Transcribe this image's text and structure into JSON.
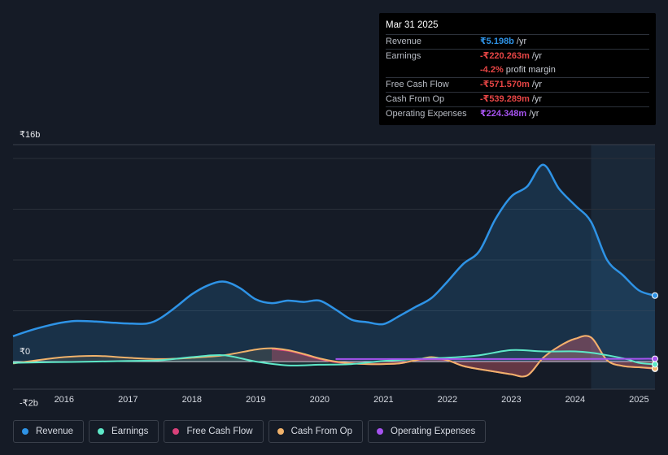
{
  "tooltip": {
    "date": "Mar 31 2025",
    "rows": [
      {
        "label": "Revenue",
        "value": "₹5.198b",
        "unit": "/yr",
        "color": "#2e93e6"
      },
      {
        "label": "Earnings",
        "value": "-₹220.263m",
        "unit": "/yr",
        "color": "#e64545"
      },
      {
        "label": "",
        "value": "-4.2%",
        "unit": "profit margin",
        "color": "#e64545"
      },
      {
        "label": "Free Cash Flow",
        "value": "-₹571.570m",
        "unit": "/yr",
        "color": "#e64545"
      },
      {
        "label": "Cash From Op",
        "value": "-₹539.289m",
        "unit": "/yr",
        "color": "#e64545"
      },
      {
        "label": "Operating Expenses",
        "value": "₹224.348m",
        "unit": "/yr",
        "color": "#a653f0"
      }
    ]
  },
  "legend": [
    {
      "label": "Revenue",
      "color": "#2e93e6"
    },
    {
      "label": "Earnings",
      "color": "#5ee8c8"
    },
    {
      "label": "Free Cash Flow",
      "color": "#d9417a"
    },
    {
      "label": "Cash From Op",
      "color": "#f0b26b"
    },
    {
      "label": "Operating Expenses",
      "color": "#a653f0"
    }
  ],
  "chart_data": {
    "type": "area",
    "y_tick_labels": [
      "₹16b",
      "₹0",
      "-₹2b"
    ],
    "ylim": [
      -2,
      16
    ],
    "xlim": [
      2015.2,
      2025.25
    ],
    "x_tick_labels": [
      "2016",
      "2017",
      "2018",
      "2019",
      "2020",
      "2021",
      "2022",
      "2023",
      "2024",
      "2025"
    ],
    "x_ticks": [
      2016,
      2017,
      2018,
      2019,
      2020,
      2021,
      2022,
      2023,
      2024,
      2025
    ],
    "forecast_start": 2024.25,
    "series": [
      {
        "name": "Revenue",
        "color": "#2e93e6",
        "x": [
          2015.2,
          2015.5,
          2015.8,
          2016.0,
          2016.2,
          2016.5,
          2016.8,
          2017.0,
          2017.3,
          2017.5,
          2017.75,
          2018.0,
          2018.25,
          2018.5,
          2018.75,
          2019.0,
          2019.25,
          2019.5,
          2019.75,
          2020.0,
          2020.25,
          2020.5,
          2020.75,
          2021.0,
          2021.25,
          2021.5,
          2021.75,
          2022.0,
          2022.25,
          2022.5,
          2022.75,
          2023.0,
          2023.25,
          2023.5,
          2023.75,
          2024.0,
          2024.25,
          2024.5,
          2024.75,
          2025.0,
          2025.25
        ],
        "values": [
          2.0,
          2.5,
          2.9,
          3.1,
          3.2,
          3.15,
          3.05,
          3.0,
          3.0,
          3.4,
          4.3,
          5.3,
          6.0,
          6.3,
          5.8,
          4.9,
          4.6,
          4.8,
          4.7,
          4.8,
          4.1,
          3.3,
          3.1,
          2.95,
          3.6,
          4.3,
          5.0,
          6.3,
          7.7,
          8.7,
          11.2,
          13.0,
          13.8,
          15.5,
          13.6,
          12.3,
          11.0,
          8.0,
          6.8,
          5.6,
          5.2
        ]
      },
      {
        "name": "Earnings",
        "color": "#5ee8c8",
        "x": [
          2015.2,
          2015.8,
          2016.5,
          2017.0,
          2017.5,
          2018.0,
          2018.5,
          2019.0,
          2019.5,
          2020.0,
          2020.5,
          2021.0,
          2021.5,
          2022.0,
          2022.5,
          2023.0,
          2023.5,
          2024.0,
          2024.25,
          2024.5,
          2024.8,
          2025.0,
          2025.25
        ],
        "values": [
          -0.1,
          -0.05,
          0.0,
          0.05,
          0.1,
          0.35,
          0.5,
          0.0,
          -0.3,
          -0.25,
          -0.2,
          0.05,
          0.2,
          0.3,
          0.5,
          0.9,
          0.8,
          0.8,
          0.7,
          0.5,
          0.2,
          -0.1,
          -0.22
        ]
      },
      {
        "name": "Free Cash Flow",
        "color": "#d9417a",
        "x": [
          2019.25,
          2019.5,
          2019.75,
          2020.0,
          2020.25,
          2020.5,
          2020.75,
          2021.0,
          2021.25,
          2021.5,
          2021.75,
          2022.0,
          2022.25,
          2022.5,
          2022.75,
          2023.0,
          2023.25,
          2023.5,
          2023.75,
          2024.0,
          2024.25,
          2024.5,
          2024.75,
          2025.0,
          2025.25
        ],
        "values": [
          1.0,
          0.85,
          0.55,
          0.2,
          -0.05,
          -0.15,
          -0.2,
          -0.2,
          -0.15,
          0.1,
          0.2,
          0.1,
          -0.35,
          -0.6,
          -0.8,
          -1.0,
          -1.1,
          0.3,
          1.2,
          1.8,
          1.9,
          0.1,
          -0.35,
          -0.45,
          -0.57
        ]
      },
      {
        "name": "Cash From Op",
        "color": "#f0b26b",
        "x": [
          2015.2,
          2015.5,
          2016.0,
          2016.5,
          2017.0,
          2017.5,
          2018.0,
          2018.5,
          2019.0,
          2019.25,
          2019.5,
          2019.75,
          2020.0,
          2020.25,
          2020.5,
          2020.75,
          2021.0,
          2021.25,
          2021.5,
          2021.75,
          2022.0,
          2022.25,
          2022.5,
          2022.75,
          2023.0,
          2023.25,
          2023.5,
          2023.75,
          2024.0,
          2024.25,
          2024.5,
          2024.75,
          2025.0,
          2025.25
        ],
        "values": [
          -0.15,
          0.05,
          0.35,
          0.45,
          0.3,
          0.2,
          0.3,
          0.5,
          0.95,
          1.05,
          0.9,
          0.6,
          0.25,
          0.0,
          -0.15,
          -0.2,
          -0.2,
          -0.15,
          0.1,
          0.35,
          0.1,
          -0.35,
          -0.6,
          -0.8,
          -1.0,
          -1.1,
          0.3,
          1.2,
          1.8,
          1.9,
          0.1,
          -0.35,
          -0.45,
          -0.54
        ]
      },
      {
        "name": "Operating Expenses",
        "color": "#a653f0",
        "x": [
          2020.25,
          2021.0,
          2022.0,
          2023.0,
          2024.0,
          2025.0,
          2025.25
        ],
        "values": [
          0.2,
          0.2,
          0.2,
          0.2,
          0.2,
          0.22,
          0.22
        ]
      }
    ]
  }
}
